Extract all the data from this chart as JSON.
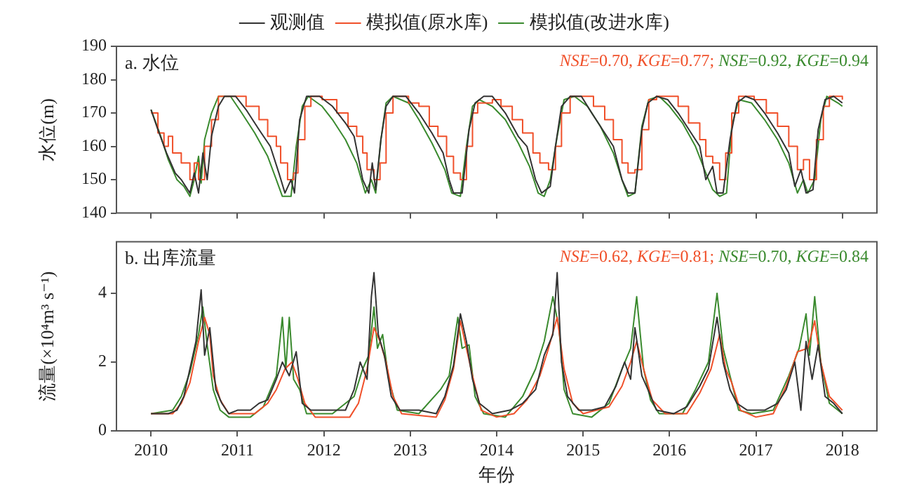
{
  "chart_data": [
    {
      "type": "line",
      "title": "a. 水位",
      "ylabel": "水位(m)",
      "xlim": [
        2009.6,
        2018.4
      ],
      "xticks": [
        2010,
        2011,
        2012,
        2013,
        2014,
        2015,
        2016,
        2017,
        2018
      ],
      "ylim": [
        140,
        190
      ],
      "yticks": [
        140,
        150,
        160,
        170,
        180,
        190
      ],
      "tick_labels": "y",
      "grid": false,
      "legend": "top",
      "annotations": [
        "NSE=0.70, KGE=0.77;",
        "NSE=0.92, KGE=0.94"
      ],
      "series": [
        {
          "name": "观测值",
          "color": "#333333",
          "x": [
            2010.0,
            2010.08,
            2010.18,
            2010.28,
            2010.35,
            2010.45,
            2010.5,
            2010.55,
            2010.6,
            2010.65,
            2010.7,
            2010.78,
            2010.85,
            2010.98,
            2011.1,
            2011.25,
            2011.38,
            2011.48,
            2011.55,
            2011.62,
            2011.66,
            2011.72,
            2011.8,
            2011.95,
            2012.1,
            2012.25,
            2012.35,
            2012.45,
            2012.52,
            2012.56,
            2012.6,
            2012.66,
            2012.72,
            2012.8,
            2012.95,
            2013.1,
            2013.25,
            2013.38,
            2013.45,
            2013.5,
            2013.6,
            2013.68,
            2013.75,
            2013.85,
            2013.95,
            2014.1,
            2014.25,
            2014.35,
            2014.45,
            2014.52,
            2014.62,
            2014.68,
            2014.75,
            2014.85,
            2014.98,
            2015.1,
            2015.25,
            2015.35,
            2015.45,
            2015.52,
            2015.6,
            2015.68,
            2015.75,
            2015.85,
            2015.98,
            2016.1,
            2016.25,
            2016.35,
            2016.42,
            2016.5,
            2016.55,
            2016.62,
            2016.7,
            2016.78,
            2016.88,
            2016.98,
            2017.1,
            2017.25,
            2017.38,
            2017.45,
            2017.52,
            2017.58,
            2017.66,
            2017.72,
            2017.8,
            2017.9,
            2018.0
          ],
          "values": [
            171,
            165,
            158,
            152,
            150,
            146,
            152,
            146,
            158,
            150,
            163,
            172,
            175,
            175,
            171,
            165,
            160,
            152,
            146,
            150,
            146,
            168,
            175,
            175,
            172,
            167,
            163,
            150,
            146,
            155,
            147,
            162,
            172,
            175,
            175,
            170,
            164,
            158,
            150,
            146,
            146,
            165,
            173,
            175,
            175,
            170,
            163,
            160,
            150,
            146,
            148,
            160,
            172,
            175,
            175,
            170,
            164,
            160,
            150,
            146,
            146,
            165,
            173,
            175,
            174,
            170,
            164,
            160,
            150,
            154,
            146,
            146,
            162,
            173,
            175,
            174,
            170,
            164,
            158,
            148,
            153,
            146,
            147,
            165,
            174,
            175,
            173
          ]
        },
        {
          "name": "模拟值(原水库)",
          "type": "step",
          "color": "#f0502a",
          "x": [
            2010.0,
            2010.08,
            2010.15,
            2010.2,
            2010.25,
            2010.35,
            2010.45,
            2010.5,
            2010.55,
            2010.62,
            2010.7,
            2010.78,
            2010.95,
            2011.1,
            2011.25,
            2011.35,
            2011.45,
            2011.5,
            2011.58,
            2011.65,
            2011.7,
            2011.78,
            2011.85,
            2011.98,
            2012.15,
            2012.28,
            2012.38,
            2012.45,
            2012.5,
            2012.58,
            2012.65,
            2012.72,
            2012.8,
            2012.98,
            2013.1,
            2013.22,
            2013.32,
            2013.42,
            2013.5,
            2013.58,
            2013.65,
            2013.72,
            2013.78,
            2013.95,
            2014.05,
            2014.18,
            2014.3,
            2014.42,
            2014.5,
            2014.6,
            2014.68,
            2014.75,
            2014.85,
            2014.98,
            2015.12,
            2015.25,
            2015.35,
            2015.45,
            2015.52,
            2015.6,
            2015.68,
            2015.76,
            2015.85,
            2015.98,
            2016.1,
            2016.22,
            2016.35,
            2016.42,
            2016.5,
            2016.58,
            2016.65,
            2016.72,
            2016.8,
            2016.98,
            2017.12,
            2017.25,
            2017.38,
            2017.48,
            2017.55,
            2017.62,
            2017.7,
            2017.78,
            2017.85,
            2018.0
          ],
          "values": [
            170,
            164,
            160,
            163,
            158,
            155,
            150,
            155,
            150,
            160,
            168,
            175,
            175,
            172,
            168,
            163,
            160,
            155,
            150,
            152,
            162,
            172,
            175,
            174,
            170,
            166,
            163,
            158,
            153,
            150,
            155,
            170,
            175,
            173,
            172,
            166,
            163,
            157,
            152,
            150,
            160,
            170,
            173,
            174,
            172,
            168,
            164,
            158,
            155,
            153,
            160,
            170,
            175,
            175,
            172,
            168,
            162,
            155,
            152,
            153,
            165,
            174,
            175,
            175,
            172,
            167,
            162,
            157,
            155,
            150,
            158,
            170,
            175,
            174,
            170,
            166,
            160,
            153,
            156,
            150,
            162,
            172,
            175,
            174
          ]
        },
        {
          "name": "模拟值(改进水库)",
          "color": "#3a8a2e",
          "x": [
            2010.0,
            2010.1,
            2010.2,
            2010.3,
            2010.38,
            2010.45,
            2010.5,
            2010.55,
            2010.58,
            2010.62,
            2010.7,
            2010.78,
            2010.92,
            2011.05,
            2011.2,
            2011.35,
            2011.45,
            2011.52,
            2011.62,
            2011.68,
            2011.75,
            2011.82,
            2011.98,
            2012.1,
            2012.25,
            2012.38,
            2012.48,
            2012.55,
            2012.6,
            2012.66,
            2012.72,
            2012.8,
            2012.98,
            2013.1,
            2013.25,
            2013.4,
            2013.48,
            2013.58,
            2013.65,
            2013.72,
            2013.8,
            2013.95,
            2014.1,
            2014.25,
            2014.38,
            2014.48,
            2014.55,
            2014.62,
            2014.7,
            2014.78,
            2014.9,
            2015.05,
            2015.2,
            2015.35,
            2015.45,
            2015.52,
            2015.6,
            2015.68,
            2015.76,
            2015.88,
            2016.0,
            2016.15,
            2016.3,
            2016.42,
            2016.5,
            2016.58,
            2016.66,
            2016.72,
            2016.8,
            2016.95,
            2017.1,
            2017.25,
            2017.38,
            2017.48,
            2017.55,
            2017.6,
            2017.68,
            2017.75,
            2017.82,
            2017.95,
            2018.0
          ],
          "values": [
            171,
            164,
            156,
            150,
            148,
            145,
            150,
            157,
            149,
            162,
            170,
            175,
            175,
            170,
            164,
            157,
            150,
            145,
            145,
            160,
            172,
            175,
            172,
            168,
            162,
            155,
            146,
            150,
            146,
            162,
            173,
            175,
            173,
            168,
            161,
            153,
            146,
            145,
            160,
            172,
            174,
            172,
            168,
            161,
            154,
            146,
            145,
            150,
            163,
            174,
            175,
            172,
            166,
            158,
            150,
            145,
            146,
            166,
            174,
            175,
            172,
            167,
            160,
            152,
            147,
            145,
            146,
            166,
            174,
            173,
            168,
            162,
            155,
            146,
            150,
            146,
            150,
            168,
            175,
            173,
            172
          ]
        }
      ]
    },
    {
      "type": "line",
      "title": "b. 出库流量",
      "xlabel": "年份",
      "ylabel": "流量(×10⁴m³ s⁻¹)",
      "xlim": [
        2009.6,
        2018.4
      ],
      "xticks": [
        2010,
        2011,
        2012,
        2013,
        2014,
        2015,
        2016,
        2017,
        2018
      ],
      "ylim": [
        0,
        5.5
      ],
      "yticks": [
        0,
        2,
        4
      ],
      "grid": false,
      "annotations": [
        "NSE=0.62, KGE=0.81;",
        "NSE=0.70, KGE=0.84"
      ],
      "series": [
        {
          "color": "#333333",
          "x": [
            2010.0,
            2010.2,
            2010.3,
            2010.38,
            2010.45,
            2010.52,
            2010.58,
            2010.62,
            2010.68,
            2010.75,
            2010.82,
            2010.9,
            2011.0,
            2011.15,
            2011.25,
            2011.35,
            2011.45,
            2011.52,
            2011.6,
            2011.68,
            2011.75,
            2011.85,
            2012.0,
            2012.25,
            2012.35,
            2012.42,
            2012.5,
            2012.55,
            2012.58,
            2012.63,
            2012.7,
            2012.78,
            2012.88,
            2013.1,
            2013.3,
            2013.4,
            2013.5,
            2013.58,
            2013.65,
            2013.72,
            2013.8,
            2013.95,
            2014.15,
            2014.3,
            2014.45,
            2014.55,
            2014.65,
            2014.7,
            2014.75,
            2014.82,
            2014.95,
            2015.1,
            2015.25,
            2015.38,
            2015.48,
            2015.55,
            2015.6,
            2015.68,
            2015.75,
            2015.85,
            2016.05,
            2016.2,
            2016.35,
            2016.45,
            2016.55,
            2016.62,
            2016.7,
            2016.78,
            2016.9,
            2017.1,
            2017.25,
            2017.35,
            2017.45,
            2017.52,
            2017.58,
            2017.65,
            2017.72,
            2017.8,
            2017.9,
            2018.0
          ],
          "values": [
            0.5,
            0.5,
            0.6,
            1.0,
            1.8,
            2.6,
            4.1,
            2.2,
            3.0,
            1.2,
            0.8,
            0.5,
            0.6,
            0.6,
            0.8,
            0.9,
            1.5,
            2.0,
            1.6,
            2.3,
            0.8,
            0.6,
            0.6,
            0.6,
            1.2,
            2.0,
            1.5,
            3.9,
            4.6,
            2.8,
            2.2,
            1.0,
            0.6,
            0.6,
            0.5,
            1.0,
            1.9,
            3.4,
            2.6,
            1.5,
            0.8,
            0.5,
            0.6,
            0.8,
            1.2,
            2.2,
            2.8,
            4.6,
            2.0,
            1.0,
            0.6,
            0.6,
            0.7,
            1.3,
            2.0,
            1.5,
            3.0,
            1.6,
            1.2,
            0.6,
            0.5,
            0.7,
            1.3,
            1.8,
            3.3,
            2.0,
            1.2,
            0.8,
            0.6,
            0.6,
            0.8,
            1.2,
            2.0,
            0.6,
            2.6,
            1.5,
            2.5,
            1.0,
            0.8,
            0.5
          ]
        },
        {
          "color": "#f0502a",
          "x": [
            2010.0,
            2010.25,
            2010.35,
            2010.45,
            2010.55,
            2010.62,
            2010.68,
            2010.72,
            2010.8,
            2010.9,
            2011.2,
            2011.35,
            2011.45,
            2011.55,
            2011.63,
            2011.7,
            2011.78,
            2011.9,
            2012.3,
            2012.4,
            2012.5,
            2012.58,
            2012.65,
            2012.72,
            2012.8,
            2012.9,
            2013.3,
            2013.4,
            2013.5,
            2013.58,
            2013.65,
            2013.72,
            2013.82,
            2014.0,
            2014.2,
            2014.35,
            2014.5,
            2014.6,
            2014.7,
            2014.78,
            2014.88,
            2015.0,
            2015.3,
            2015.45,
            2015.55,
            2015.62,
            2015.7,
            2015.8,
            2015.95,
            2016.2,
            2016.35,
            2016.48,
            2016.58,
            2016.65,
            2016.72,
            2016.82,
            2017.0,
            2017.2,
            2017.35,
            2017.48,
            2017.6,
            2017.68,
            2017.75,
            2017.85,
            2018.0
          ],
          "values": [
            0.5,
            0.5,
            0.8,
            1.4,
            2.6,
            3.3,
            2.8,
            1.6,
            0.9,
            0.5,
            0.5,
            0.8,
            1.2,
            1.8,
            2.0,
            1.5,
            0.8,
            0.4,
            0.4,
            0.8,
            1.8,
            3.0,
            2.6,
            2.0,
            1.0,
            0.5,
            0.4,
            0.9,
            1.8,
            3.2,
            2.4,
            1.6,
            0.6,
            0.4,
            0.5,
            0.9,
            1.6,
            2.4,
            3.3,
            1.8,
            0.8,
            0.5,
            0.7,
            1.3,
            2.0,
            2.6,
            1.8,
            0.9,
            0.5,
            0.5,
            1.1,
            1.8,
            2.8,
            1.8,
            1.4,
            0.6,
            0.4,
            0.5,
            1.3,
            2.3,
            2.4,
            3.2,
            2.0,
            1.0,
            0.6
          ]
        },
        {
          "color": "#3a8a2e",
          "x": [
            2010.0,
            2010.25,
            2010.35,
            2010.45,
            2010.55,
            2010.6,
            2010.65,
            2010.72,
            2010.8,
            2010.9,
            2011.15,
            2011.3,
            2011.45,
            2011.52,
            2011.56,
            2011.6,
            2011.65,
            2011.72,
            2011.8,
            2012.1,
            2012.35,
            2012.45,
            2012.52,
            2012.58,
            2012.62,
            2012.68,
            2012.75,
            2012.85,
            2013.1,
            2013.35,
            2013.45,
            2013.55,
            2013.6,
            2013.68,
            2013.75,
            2013.85,
            2014.1,
            2014.3,
            2014.45,
            2014.55,
            2014.65,
            2014.72,
            2014.78,
            2014.88,
            2015.1,
            2015.3,
            2015.45,
            2015.55,
            2015.62,
            2015.7,
            2015.78,
            2015.88,
            2016.15,
            2016.3,
            2016.45,
            2016.55,
            2016.62,
            2016.7,
            2016.8,
            2016.95,
            2017.2,
            2017.38,
            2017.5,
            2017.58,
            2017.62,
            2017.68,
            2017.75,
            2017.85,
            2018.0
          ],
          "values": [
            0.5,
            0.6,
            1.0,
            1.7,
            2.8,
            3.6,
            2.5,
            1.2,
            0.6,
            0.4,
            0.4,
            0.7,
            1.6,
            3.3,
            1.8,
            3.3,
            1.5,
            1.2,
            0.5,
            0.5,
            1.0,
            1.8,
            2.2,
            3.6,
            2.4,
            2.8,
            1.5,
            0.6,
            0.5,
            1.2,
            1.6,
            3.3,
            2.4,
            2.5,
            1.0,
            0.5,
            0.4,
            1.0,
            1.8,
            2.6,
            3.9,
            3.0,
            1.2,
            0.5,
            0.4,
            0.8,
            1.8,
            2.4,
            3.9,
            1.8,
            0.9,
            0.5,
            0.5,
            1.2,
            2.0,
            4.0,
            2.4,
            1.6,
            0.6,
            0.5,
            0.6,
            1.6,
            2.4,
            3.4,
            2.2,
            3.9,
            2.0,
            0.8,
            0.5
          ]
        }
      ]
    }
  ]
}
